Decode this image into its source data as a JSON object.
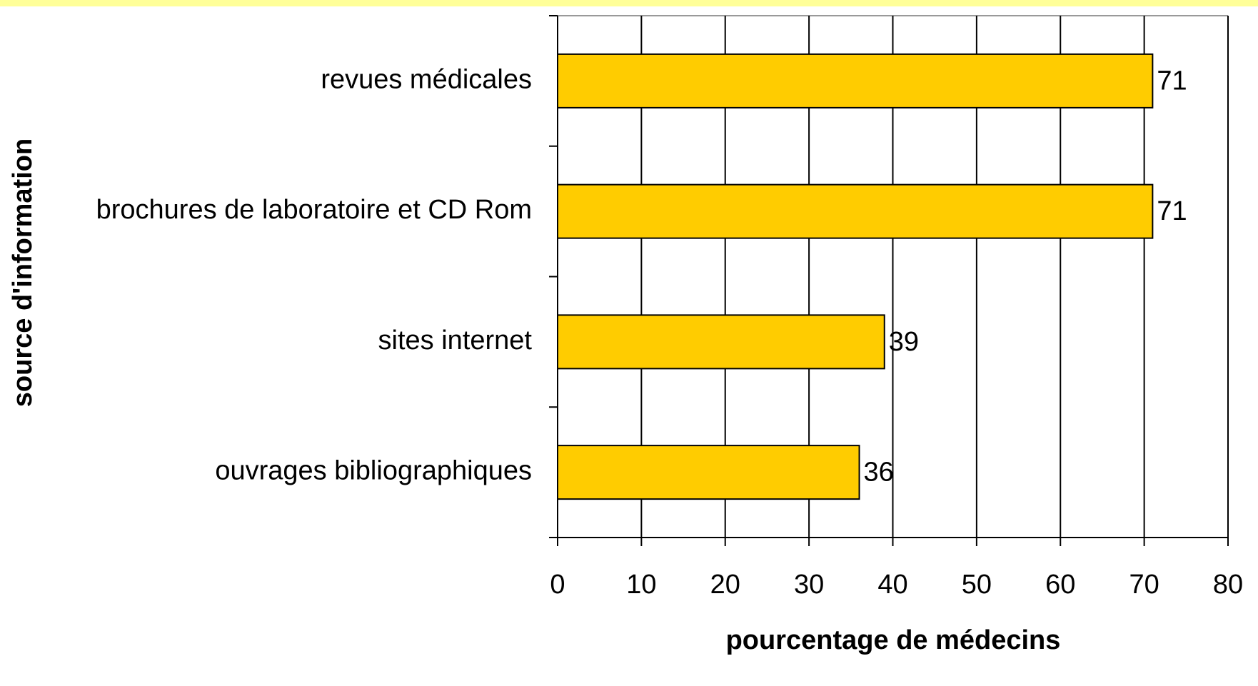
{
  "chart_data": {
    "type": "bar",
    "orientation": "horizontal",
    "categories": [
      "revues médicales",
      "brochures de laboratoire et CD Rom",
      "sites internet",
      "ouvrages bibliographiques"
    ],
    "values": [
      71,
      71,
      39,
      36
    ],
    "color": "#ffcc00",
    "xlabel": "pourcentage de médecins",
    "ylabel": "source d'information",
    "xlim": [
      0,
      80
    ],
    "xticks": [
      0,
      10,
      20,
      30,
      40,
      50,
      60,
      70,
      80
    ],
    "grid": true
  }
}
